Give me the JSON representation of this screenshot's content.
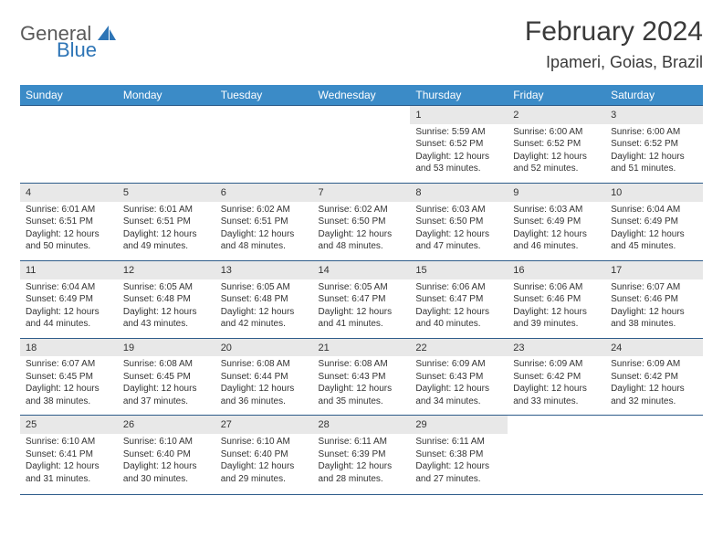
{
  "brand": {
    "word1": "General",
    "word2": "Blue",
    "logo_color": "#2e75b6"
  },
  "title": "February 2024",
  "location": "Ipameri, Goias, Brazil",
  "colors": {
    "header_bg": "#3b8bc7",
    "header_text": "#ffffff",
    "daynum_bg": "#e8e8e8",
    "rule": "#2e5c8a",
    "text": "#333333",
    "background": "#ffffff"
  },
  "typography": {
    "title_fontsize": 30,
    "location_fontsize": 18,
    "dayheader_fontsize": 12,
    "daynum_fontsize": 11,
    "cell_fontsize": 10
  },
  "day_headers": [
    "Sunday",
    "Monday",
    "Tuesday",
    "Wednesday",
    "Thursday",
    "Friday",
    "Saturday"
  ],
  "weeks": [
    [
      null,
      null,
      null,
      null,
      {
        "n": "1",
        "sunrise": "5:59 AM",
        "sunset": "6:52 PM",
        "daylight": "12 hours and 53 minutes."
      },
      {
        "n": "2",
        "sunrise": "6:00 AM",
        "sunset": "6:52 PM",
        "daylight": "12 hours and 52 minutes."
      },
      {
        "n": "3",
        "sunrise": "6:00 AM",
        "sunset": "6:52 PM",
        "daylight": "12 hours and 51 minutes."
      }
    ],
    [
      {
        "n": "4",
        "sunrise": "6:01 AM",
        "sunset": "6:51 PM",
        "daylight": "12 hours and 50 minutes."
      },
      {
        "n": "5",
        "sunrise": "6:01 AM",
        "sunset": "6:51 PM",
        "daylight": "12 hours and 49 minutes."
      },
      {
        "n": "6",
        "sunrise": "6:02 AM",
        "sunset": "6:51 PM",
        "daylight": "12 hours and 48 minutes."
      },
      {
        "n": "7",
        "sunrise": "6:02 AM",
        "sunset": "6:50 PM",
        "daylight": "12 hours and 48 minutes."
      },
      {
        "n": "8",
        "sunrise": "6:03 AM",
        "sunset": "6:50 PM",
        "daylight": "12 hours and 47 minutes."
      },
      {
        "n": "9",
        "sunrise": "6:03 AM",
        "sunset": "6:49 PM",
        "daylight": "12 hours and 46 minutes."
      },
      {
        "n": "10",
        "sunrise": "6:04 AM",
        "sunset": "6:49 PM",
        "daylight": "12 hours and 45 minutes."
      }
    ],
    [
      {
        "n": "11",
        "sunrise": "6:04 AM",
        "sunset": "6:49 PM",
        "daylight": "12 hours and 44 minutes."
      },
      {
        "n": "12",
        "sunrise": "6:05 AM",
        "sunset": "6:48 PM",
        "daylight": "12 hours and 43 minutes."
      },
      {
        "n": "13",
        "sunrise": "6:05 AM",
        "sunset": "6:48 PM",
        "daylight": "12 hours and 42 minutes."
      },
      {
        "n": "14",
        "sunrise": "6:05 AM",
        "sunset": "6:47 PM",
        "daylight": "12 hours and 41 minutes."
      },
      {
        "n": "15",
        "sunrise": "6:06 AM",
        "sunset": "6:47 PM",
        "daylight": "12 hours and 40 minutes."
      },
      {
        "n": "16",
        "sunrise": "6:06 AM",
        "sunset": "6:46 PM",
        "daylight": "12 hours and 39 minutes."
      },
      {
        "n": "17",
        "sunrise": "6:07 AM",
        "sunset": "6:46 PM",
        "daylight": "12 hours and 38 minutes."
      }
    ],
    [
      {
        "n": "18",
        "sunrise": "6:07 AM",
        "sunset": "6:45 PM",
        "daylight": "12 hours and 38 minutes."
      },
      {
        "n": "19",
        "sunrise": "6:08 AM",
        "sunset": "6:45 PM",
        "daylight": "12 hours and 37 minutes."
      },
      {
        "n": "20",
        "sunrise": "6:08 AM",
        "sunset": "6:44 PM",
        "daylight": "12 hours and 36 minutes."
      },
      {
        "n": "21",
        "sunrise": "6:08 AM",
        "sunset": "6:43 PM",
        "daylight": "12 hours and 35 minutes."
      },
      {
        "n": "22",
        "sunrise": "6:09 AM",
        "sunset": "6:43 PM",
        "daylight": "12 hours and 34 minutes."
      },
      {
        "n": "23",
        "sunrise": "6:09 AM",
        "sunset": "6:42 PM",
        "daylight": "12 hours and 33 minutes."
      },
      {
        "n": "24",
        "sunrise": "6:09 AM",
        "sunset": "6:42 PM",
        "daylight": "12 hours and 32 minutes."
      }
    ],
    [
      {
        "n": "25",
        "sunrise": "6:10 AM",
        "sunset": "6:41 PM",
        "daylight": "12 hours and 31 minutes."
      },
      {
        "n": "26",
        "sunrise": "6:10 AM",
        "sunset": "6:40 PM",
        "daylight": "12 hours and 30 minutes."
      },
      {
        "n": "27",
        "sunrise": "6:10 AM",
        "sunset": "6:40 PM",
        "daylight": "12 hours and 29 minutes."
      },
      {
        "n": "28",
        "sunrise": "6:11 AM",
        "sunset": "6:39 PM",
        "daylight": "12 hours and 28 minutes."
      },
      {
        "n": "29",
        "sunrise": "6:11 AM",
        "sunset": "6:38 PM",
        "daylight": "12 hours and 27 minutes."
      },
      null,
      null
    ]
  ],
  "labels": {
    "sunrise": "Sunrise:",
    "sunset": "Sunset:",
    "daylight": "Daylight:"
  }
}
